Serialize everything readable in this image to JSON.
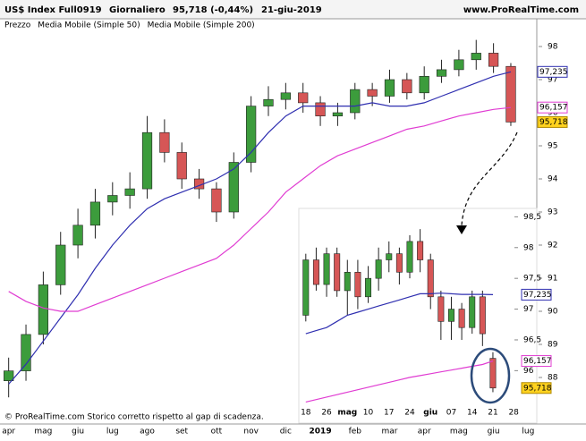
{
  "header": {
    "symbol": "US$ Index Full0919",
    "period": "Giornaliero",
    "quote": "95,718 (-0,44%)",
    "date": "21-giu-2019",
    "site": "www.ProRealTime.com"
  },
  "footer": "© ProRealTime.com  Storico corretto rispetto al gap di scadenza.",
  "chart_data": [
    {
      "type": "candlestick",
      "categories": [
        "apr",
        null,
        "mag",
        null,
        "giu",
        null,
        "lug",
        null,
        "ago",
        null,
        "set",
        null,
        "ott",
        null,
        "nov",
        null,
        "dic",
        null,
        "2019",
        null,
        "feb",
        null,
        "mar",
        null,
        "apr",
        null,
        "mag",
        null,
        "giu",
        null,
        "lug"
      ],
      "series": [
        {
          "name": "Prezzo",
          "color": "#000000",
          "up_color": "#3c9c3c",
          "down_color": "#d65656",
          "open": [
            87.9,
            88.2,
            89.3,
            90.8,
            92.0,
            92.6,
            93.3,
            93.5,
            93.7,
            95.4,
            94.8,
            94.0,
            93.7,
            93.0,
            94.5,
            96.2,
            96.4,
            96.6,
            96.3,
            95.9,
            96.0,
            96.7,
            96.5,
            97.0,
            96.6,
            97.1,
            97.3,
            97.6,
            97.8,
            97.4,
            null
          ],
          "high": [
            88.6,
            89.6,
            91.2,
            92.4,
            93.1,
            93.7,
            93.9,
            94.2,
            95.9,
            95.8,
            95.1,
            94.3,
            93.9,
            94.8,
            96.5,
            96.8,
            96.9,
            96.9,
            96.5,
            96.3,
            96.9,
            96.9,
            97.3,
            97.2,
            97.4,
            97.6,
            97.9,
            98.2,
            98.1,
            97.5,
            null
          ],
          "low": [
            87.4,
            87.9,
            89.0,
            90.5,
            91.6,
            92.2,
            92.9,
            93.1,
            93.4,
            94.5,
            93.7,
            93.4,
            92.7,
            92.8,
            94.2,
            95.9,
            96.1,
            96.0,
            95.6,
            95.6,
            95.8,
            96.2,
            96.3,
            96.4,
            96.4,
            96.9,
            97.1,
            97.3,
            97.2,
            95.6,
            null
          ],
          "close": [
            88.2,
            89.3,
            90.8,
            92.0,
            92.6,
            93.3,
            93.5,
            93.7,
            95.4,
            94.8,
            94.0,
            93.7,
            93.0,
            94.5,
            96.2,
            96.4,
            96.6,
            96.3,
            95.9,
            96.0,
            96.7,
            96.5,
            97.0,
            96.6,
            97.1,
            97.3,
            97.6,
            97.8,
            97.4,
            95.718,
            null
          ],
          "value_labels": [
            null,
            null,
            null,
            null,
            null,
            null,
            null,
            null,
            null,
            null,
            null,
            null,
            null,
            null,
            null,
            null,
            null,
            null,
            null,
            null,
            null,
            null,
            null,
            null,
            null,
            null,
            null,
            null,
            null,
            "95,718",
            null
          ]
        },
        {
          "name": "Media Mobile (Simple 50)",
          "color": "#2f2fb0",
          "values": [
            87.8,
            88.4,
            89.1,
            89.8,
            90.5,
            91.3,
            92.0,
            92.6,
            93.1,
            93.4,
            93.6,
            93.8,
            94.0,
            94.3,
            94.8,
            95.4,
            95.9,
            96.2,
            96.2,
            96.2,
            96.2,
            96.3,
            96.2,
            96.2,
            96.3,
            96.5,
            96.7,
            96.9,
            97.1,
            97.235,
            null
          ],
          "value_labels": [
            null,
            null,
            null,
            null,
            null,
            null,
            null,
            null,
            null,
            null,
            null,
            null,
            null,
            null,
            null,
            null,
            null,
            null,
            null,
            null,
            null,
            null,
            null,
            null,
            null,
            null,
            null,
            null,
            null,
            "97,235",
            null
          ]
        },
        {
          "name": "Media Mobile (Simple 200)",
          "color": "#e03cd2",
          "values": [
            90.6,
            90.3,
            90.1,
            90.0,
            90.0,
            90.2,
            90.4,
            90.6,
            90.8,
            91.0,
            91.2,
            91.4,
            91.6,
            92.0,
            92.5,
            93.0,
            93.6,
            94.0,
            94.4,
            94.7,
            94.9,
            95.1,
            95.3,
            95.5,
            95.6,
            95.75,
            95.9,
            96.0,
            96.1,
            96.157,
            null
          ],
          "value_labels": [
            null,
            null,
            null,
            null,
            null,
            null,
            null,
            null,
            null,
            null,
            null,
            null,
            null,
            null,
            null,
            null,
            null,
            null,
            null,
            null,
            null,
            null,
            null,
            null,
            null,
            null,
            null,
            null,
            null,
            "96,157",
            null
          ]
        }
      ],
      "ylim": [
        86.6,
        98.5
      ],
      "yticks": [
        88,
        89,
        90,
        91,
        92,
        93,
        94,
        95,
        96,
        97,
        98
      ]
    },
    {
      "type": "candlestick",
      "categories": [
        "18",
        null,
        "26",
        null,
        "mag",
        null,
        "10",
        null,
        "17",
        null,
        "24",
        null,
        "giu",
        null,
        "07",
        null,
        "14",
        null,
        "21",
        null,
        "28"
      ],
      "series": [
        {
          "name": "Prezzo",
          "color": "#000000",
          "up_color": "#3c9c3c",
          "down_color": "#d65656",
          "open": [
            96.9,
            97.8,
            97.4,
            97.9,
            97.3,
            97.6,
            97.2,
            97.5,
            97.8,
            97.9,
            97.6,
            98.1,
            97.8,
            97.2,
            96.8,
            97.0,
            96.7,
            97.2,
            96.2,
            null,
            null
          ],
          "high": [
            97.9,
            98.0,
            98.0,
            98.0,
            97.8,
            97.8,
            97.7,
            98.0,
            98.1,
            98.0,
            98.2,
            98.3,
            97.9,
            97.3,
            97.2,
            97.1,
            97.3,
            97.3,
            96.3,
            null,
            null
          ],
          "low": [
            96.8,
            97.3,
            97.2,
            97.2,
            96.9,
            97.0,
            97.1,
            97.3,
            97.6,
            97.4,
            97.5,
            97.6,
            97.0,
            96.5,
            96.5,
            96.5,
            96.6,
            96.4,
            95.65,
            null,
            null
          ],
          "close": [
            97.8,
            97.4,
            97.9,
            97.3,
            97.6,
            97.2,
            97.5,
            97.8,
            97.9,
            97.6,
            98.1,
            97.8,
            97.2,
            96.8,
            97.0,
            96.7,
            97.2,
            96.6,
            95.718,
            null,
            null
          ],
          "value_labels": [
            null,
            null,
            null,
            null,
            null,
            null,
            null,
            null,
            null,
            null,
            null,
            null,
            null,
            null,
            null,
            null,
            null,
            null,
            "95,718",
            null,
            null
          ]
        },
        {
          "name": "Media Mobile (Simple 50)",
          "color": "#2f2fb0",
          "values": [
            96.6,
            96.65,
            96.7,
            96.8,
            96.9,
            96.95,
            97.0,
            97.05,
            97.1,
            97.15,
            97.2,
            97.25,
            97.25,
            97.26,
            97.25,
            97.24,
            97.24,
            97.24,
            97.235,
            null,
            null
          ],
          "value_labels": [
            null,
            null,
            null,
            null,
            null,
            null,
            null,
            null,
            null,
            null,
            null,
            null,
            null,
            null,
            null,
            null,
            null,
            null,
            "97,235",
            null,
            null
          ]
        },
        {
          "name": "Media Mobile (Simple 200)",
          "color": "#e03cd2",
          "values": [
            95.49,
            95.53,
            95.57,
            95.61,
            95.65,
            95.69,
            95.73,
            95.77,
            95.81,
            95.85,
            95.89,
            95.92,
            95.95,
            95.98,
            96.01,
            96.04,
            96.07,
            96.1,
            96.157,
            null,
            null
          ],
          "value_labels": [
            null,
            null,
            null,
            null,
            null,
            null,
            null,
            null,
            null,
            null,
            null,
            null,
            null,
            null,
            null,
            null,
            null,
            null,
            "96,157",
            null,
            null
          ]
        }
      ],
      "ylim": [
        95.45,
        98.6
      ],
      "yticks": [
        {
          "value": 96,
          "label": "96"
        },
        {
          "value": 96.5,
          "label": "96,5"
        },
        {
          "value": 97,
          "label": "97"
        },
        {
          "value": 97.5,
          "label": "97,5"
        },
        {
          "value": 98,
          "label": "98"
        },
        {
          "value": 98.5,
          "label": "98,5"
        }
      ]
    }
  ]
}
